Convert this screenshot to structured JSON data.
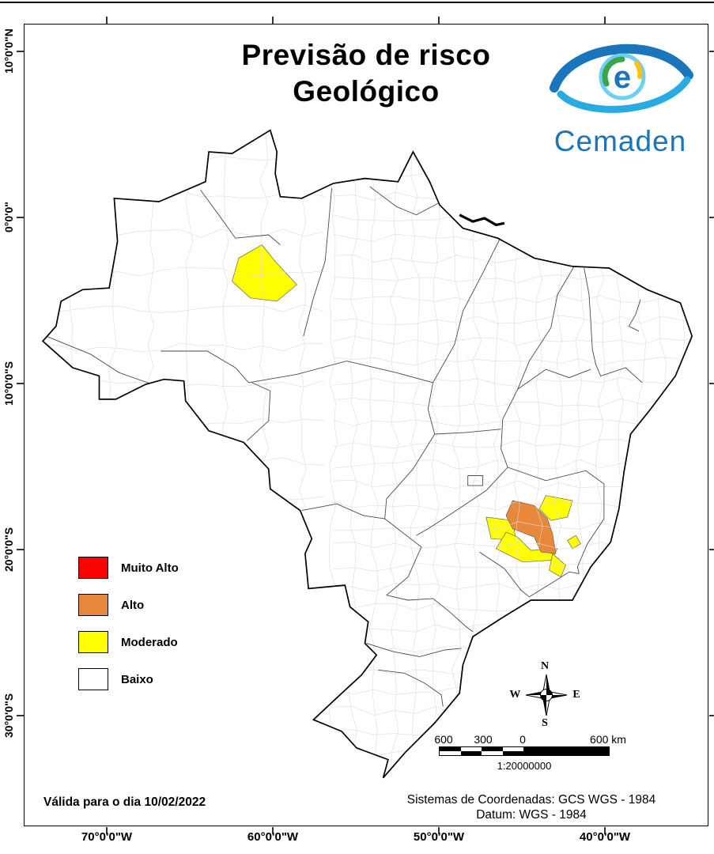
{
  "title": {
    "line1": "Previsão de risco",
    "line2": "Geológico"
  },
  "logo": {
    "name": "Cemaden"
  },
  "legend": {
    "items": [
      {
        "label": "Muito Alto",
        "color": "#fe0000"
      },
      {
        "label": "Alto",
        "color": "#e8883c"
      },
      {
        "label": "Moderado",
        "color": "#ffff00"
      },
      {
        "label": "Baixo",
        "color": "#ffffff"
      }
    ]
  },
  "compass": {
    "north": "N",
    "south": "S",
    "east": "E",
    "west": "W"
  },
  "scale_bar": {
    "labels": [
      "600",
      "300",
      "0",
      "600 km"
    ],
    "ratio_text": "1:20000000"
  },
  "footer": {
    "validity": "Válida para o dia 10/02/2022",
    "crs_line1": "Sistemas de Coordenadas: GCS WGS - 1984",
    "crs_line2": "Datum: WGS - 1984"
  },
  "axes": {
    "x_labels": [
      "70°0'0\"W",
      "60°0'0\"W",
      "50°0'0\"W",
      "40°0'0\"W"
    ],
    "y_labels": [
      "10°0'0\"N",
      "0°0'0\"",
      "10°0'0\"S",
      "20°0'0\"S",
      "30°0'0\"S"
    ]
  },
  "map": {
    "country": "Brasil",
    "risk_areas": [
      {
        "name": "amazonas-central",
        "level": "Moderado",
        "points": [
          [
            -1.6,
            -60.7
          ],
          [
            -2.6,
            -59.9
          ],
          [
            -4.0,
            -58.6
          ],
          [
            -5.0,
            -59.8
          ],
          [
            -4.8,
            -61.4
          ],
          [
            -3.8,
            -62.5
          ],
          [
            -2.4,
            -62.1
          ]
        ]
      },
      {
        "name": "mg-nordeste",
        "level": "Moderado",
        "points": [
          [
            -16.7,
            -43.6
          ],
          [
            -17.0,
            -42.0
          ],
          [
            -18.0,
            -42.3
          ],
          [
            -18.2,
            -43.3
          ],
          [
            -17.5,
            -44.0
          ]
        ]
      },
      {
        "name": "mg-oeste",
        "level": "Moderado",
        "points": [
          [
            -18.0,
            -47.2
          ],
          [
            -18.2,
            -45.6
          ],
          [
            -19.4,
            -45.4
          ],
          [
            -19.3,
            -46.9
          ]
        ]
      },
      {
        "name": "mg-sul",
        "level": "Moderado",
        "points": [
          [
            -18.9,
            -46.0
          ],
          [
            -19.9,
            -46.6
          ],
          [
            -20.7,
            -45.0
          ],
          [
            -20.6,
            -43.3
          ],
          [
            -19.9,
            -42.9
          ],
          [
            -20.0,
            -44.5
          ],
          [
            -19.2,
            -45.3
          ]
        ]
      },
      {
        "name": "mg-rj-divisa",
        "level": "Moderado",
        "points": [
          [
            -20.2,
            -43.2
          ],
          [
            -20.9,
            -42.4
          ],
          [
            -21.6,
            -42.7
          ],
          [
            -21.2,
            -43.4
          ]
        ]
      },
      {
        "name": "es-divisa",
        "level": "Moderado",
        "points": [
          [
            -19.1,
            -41.8
          ],
          [
            -19.6,
            -41.5
          ],
          [
            -19.9,
            -42.0
          ],
          [
            -19.4,
            -42.3
          ]
        ]
      },
      {
        "name": "mg-central",
        "level": "Alto",
        "points": [
          [
            -17.0,
            -45.6
          ],
          [
            -17.3,
            -44.3
          ],
          [
            -18.1,
            -43.5
          ],
          [
            -19.0,
            -43.2
          ],
          [
            -20.2,
            -43.0
          ],
          [
            -20.1,
            -43.9
          ],
          [
            -19.2,
            -44.3
          ],
          [
            -18.7,
            -45.6
          ],
          [
            -17.9,
            -46.0
          ]
        ]
      }
    ]
  }
}
